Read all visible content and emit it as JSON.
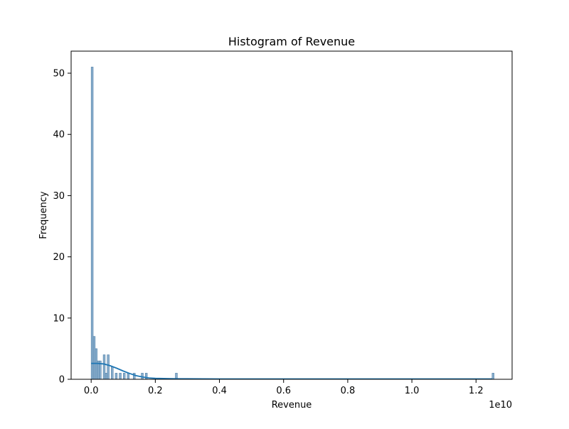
{
  "chart_data": {
    "type": "bar",
    "title": "Histogram of Revenue",
    "xlabel": "Revenue",
    "ylabel": "Frequency",
    "x_offset_text": "1e10",
    "xlim": [
      -0.0625,
      1.3125
    ],
    "ylim": [
      0,
      53.6
    ],
    "xticks": [
      0.0,
      0.2,
      0.4,
      0.6,
      0.8,
      1.0,
      1.2
    ],
    "xtick_labels": [
      "0.0",
      "0.2",
      "0.4",
      "0.6",
      "0.8",
      "1.0",
      "1.2"
    ],
    "yticks": [
      0,
      10,
      20,
      30,
      40,
      50
    ],
    "ytick_labels": [
      "0",
      "10",
      "20",
      "30",
      "40",
      "50"
    ],
    "grid": false,
    "bin_width": 0.00625,
    "bins": [
      {
        "x": 0.0,
        "count": 51
      },
      {
        "x": 0.00625,
        "count": 7
      },
      {
        "x": 0.0125,
        "count": 5
      },
      {
        "x": 0.01875,
        "count": 3
      },
      {
        "x": 0.025,
        "count": 3
      },
      {
        "x": 0.0375,
        "count": 4
      },
      {
        "x": 0.04375,
        "count": 1
      },
      {
        "x": 0.05,
        "count": 4
      },
      {
        "x": 0.0625,
        "count": 2
      },
      {
        "x": 0.075,
        "count": 1
      },
      {
        "x": 0.0875,
        "count": 1
      },
      {
        "x": 0.1,
        "count": 1
      },
      {
        "x": 0.1125,
        "count": 1
      },
      {
        "x": 0.13125,
        "count": 1
      },
      {
        "x": 0.15625,
        "count": 1
      },
      {
        "x": 0.16875,
        "count": 1
      },
      {
        "x": 0.2625,
        "count": 1
      },
      {
        "x": 1.25,
        "count": 1
      }
    ],
    "kde": {
      "x": [
        0.0,
        0.02,
        0.04,
        0.06,
        0.08,
        0.1,
        0.12,
        0.14,
        0.16,
        0.18,
        0.2,
        0.25,
        0.3,
        0.4,
        0.6,
        0.8,
        1.0,
        1.2,
        1.25
      ],
      "y": [
        2.6,
        2.6,
        2.5,
        2.2,
        1.8,
        1.35,
        0.95,
        0.6,
        0.38,
        0.22,
        0.15,
        0.1,
        0.08,
        0.06,
        0.05,
        0.05,
        0.05,
        0.05,
        0.05
      ]
    },
    "colors": {
      "bar_fill": "#7ca5c7",
      "bar_edge": "#4f7fa8",
      "kde_line": "#1f77b4"
    }
  }
}
